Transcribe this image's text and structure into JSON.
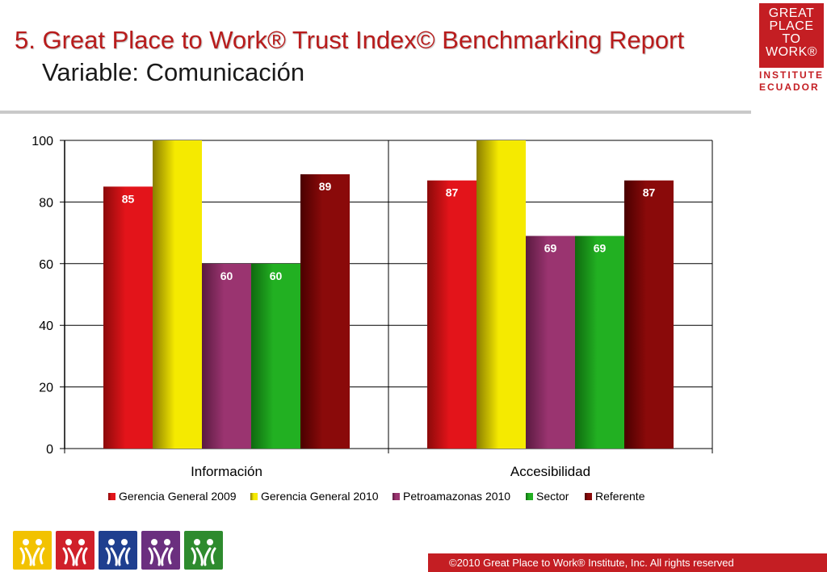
{
  "header": {
    "title": "5. Great Place to Work® Trust Index© Benchmarking Report",
    "subtitle": "Variable: Comunicación"
  },
  "logo": {
    "lines": [
      "GREAT",
      "PLACE",
      "TO",
      "WORK®"
    ],
    "sub1": "INSTITUTE",
    "sub2": "ECUADOR"
  },
  "footer": {
    "copyright": "©2010 Great Place to Work® Institute, Inc. All rights reserved"
  },
  "icons": [
    {
      "name": "people-icon-yellow",
      "color": "#f2c200"
    },
    {
      "name": "people-icon-red",
      "color": "#d0202a"
    },
    {
      "name": "people-icon-blue",
      "color": "#1f3f8f"
    },
    {
      "name": "people-icon-purple",
      "color": "#6b2f7f"
    },
    {
      "name": "people-icon-green",
      "color": "#2e8b2e"
    }
  ],
  "chart_data": {
    "type": "bar",
    "categories": [
      "Información",
      "Accesibilidad"
    ],
    "series": [
      {
        "name": "Gerencia General 2009",
        "values": [
          85,
          87
        ],
        "color": "#e3141a",
        "dark": "#8c0a0a",
        "labels": [
          "85",
          "87"
        ]
      },
      {
        "name": "Gerencia General 2010",
        "values": [
          100,
          100
        ],
        "color": "#f5ea00",
        "dark": "#8a7d00",
        "labels": [
          "",
          ""
        ]
      },
      {
        "name": "Petroamazonas 2010",
        "values": [
          60,
          69
        ],
        "color": "#9a3470",
        "dark": "#5a1a40",
        "labels": [
          "60",
          "69"
        ]
      },
      {
        "name": "Sector",
        "values": [
          60,
          69
        ],
        "color": "#22b022",
        "dark": "#0f6a0f",
        "labels": [
          "60",
          "69"
        ]
      },
      {
        "name": "Referente",
        "values": [
          89,
          87
        ],
        "color": "#8a0a0a",
        "dark": "#4a0000",
        "labels": [
          "89",
          "87"
        ]
      }
    ],
    "yticks": [
      "0",
      "20",
      "40",
      "60",
      "80",
      "100"
    ],
    "ylim": [
      0,
      100
    ],
    "grid": true,
    "legend": "bottom"
  }
}
